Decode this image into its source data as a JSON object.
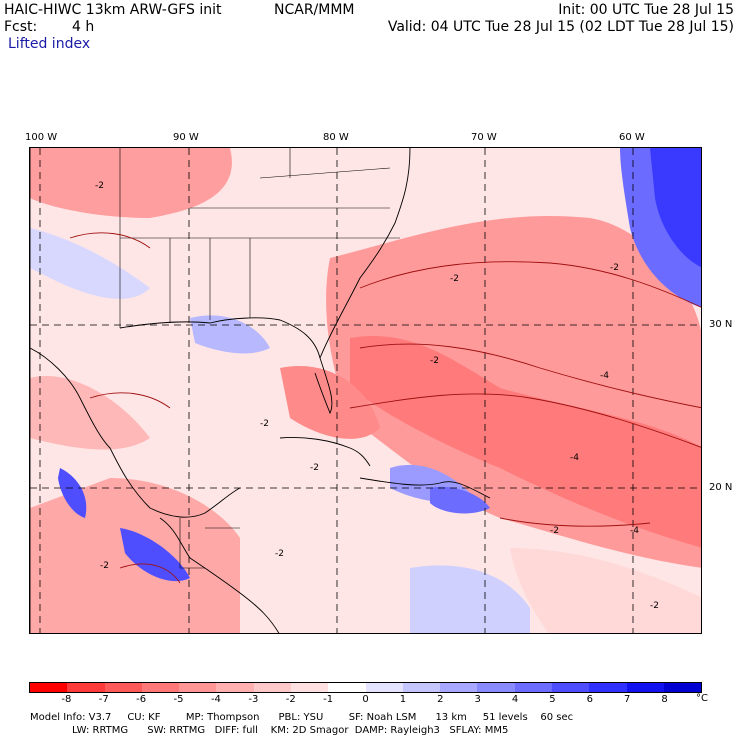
{
  "header": {
    "model_title": "HAIC-HIWC 13km ARW-GFS init",
    "agency": "NCAR/MMM",
    "init_time": "Init: 00 UTC Tue 28 Jul 15",
    "forecast_label": "Fcst:",
    "forecast_hours": "4 h",
    "valid_time": "Valid: 04 UTC Tue 28 Jul 15 (02 LDT Tue 28 Jul 15)",
    "field_name": "Lifted index"
  },
  "map": {
    "longitude_labels": [
      "100 W",
      "90 W",
      "80 W",
      "70 W",
      "60 W"
    ],
    "latitude_labels": [
      "30 N",
      "20 N"
    ],
    "contour_labels": [
      "-2",
      "-2",
      "-2",
      "-2",
      "-2",
      "-4",
      "-4",
      "-2",
      "-2",
      "-2",
      "-4",
      "-2",
      "-2"
    ]
  },
  "colorbar": {
    "unit": "°C",
    "tick_labels": [
      "-8",
      "-7",
      "-6",
      "-5",
      "-4",
      "-3",
      "-2",
      "-1",
      "0",
      "1",
      "2",
      "3",
      "4",
      "5",
      "6",
      "7",
      "8"
    ],
    "colors": [
      "#ff0000",
      "#ff3a3a",
      "#ff5a5a",
      "#ff7878",
      "#ff9595",
      "#ffb0b0",
      "#ffc9c9",
      "#ffe0e0",
      "#ffffff",
      "#e4e4ff",
      "#c6c6ff",
      "#a8a8ff",
      "#8a8aff",
      "#6c6cff",
      "#4e4eff",
      "#3030ff",
      "#1212f0",
      "#0000d2"
    ]
  },
  "footer": {
    "line1": "Model Info: V3.7     CU: KF        MP: Thompson      PBL: YSU        SF: Noah LSM      13 km     51 levels    60 sec",
    "line2": "LW: RRTMG      SW: RRTMG   DIFF: full    KM: 2D Smagor  DAMP: Rayleigh3   SFLAY: MM5"
  }
}
